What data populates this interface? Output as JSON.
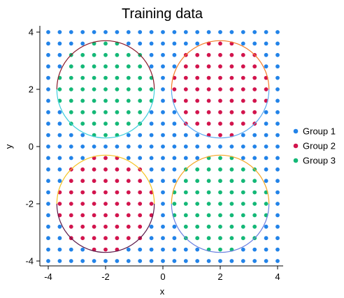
{
  "chart_data": {
    "type": "scatter",
    "title": "Training data",
    "xlabel": "x",
    "ylabel": "y",
    "xlim": [
      -4.2,
      4.2
    ],
    "ylim": [
      -4.2,
      4.2
    ],
    "x_ticks": [
      "-4",
      "-2",
      "0",
      "2",
      "4"
    ],
    "y_ticks": [
      "-4",
      "-2",
      "0",
      "2",
      "4"
    ],
    "grid": false,
    "legend_position": "right",
    "point_grid": {
      "min": -4,
      "max": 4,
      "step": 0.4
    },
    "circle_radius": 1.7,
    "circles": [
      {
        "cx": -2,
        "cy": 2,
        "group": "Group 3",
        "arc_top": "#8b1a2b",
        "arc_bottom": "#3ecfdc"
      },
      {
        "cx": 2,
        "cy": 2,
        "group": "Group 2",
        "arc_top": "#f57b26",
        "arc_bottom": "#5aa9f0"
      },
      {
        "cx": -2,
        "cy": -2,
        "group": "Group 2",
        "arc_top": "#f5c322",
        "arc_bottom": "#5c1a4a"
      },
      {
        "cx": 2,
        "cy": -2,
        "group": "Group 3",
        "arc_top": "#f5a623",
        "arc_bottom": "#6a7fe0"
      }
    ],
    "default_group": "Group 1",
    "series": [
      {
        "name": "Group 1",
        "color": "#2283e8"
      },
      {
        "name": "Group 2",
        "color": "#d2144d"
      },
      {
        "name": "Group 3",
        "color": "#14b877"
      }
    ]
  }
}
